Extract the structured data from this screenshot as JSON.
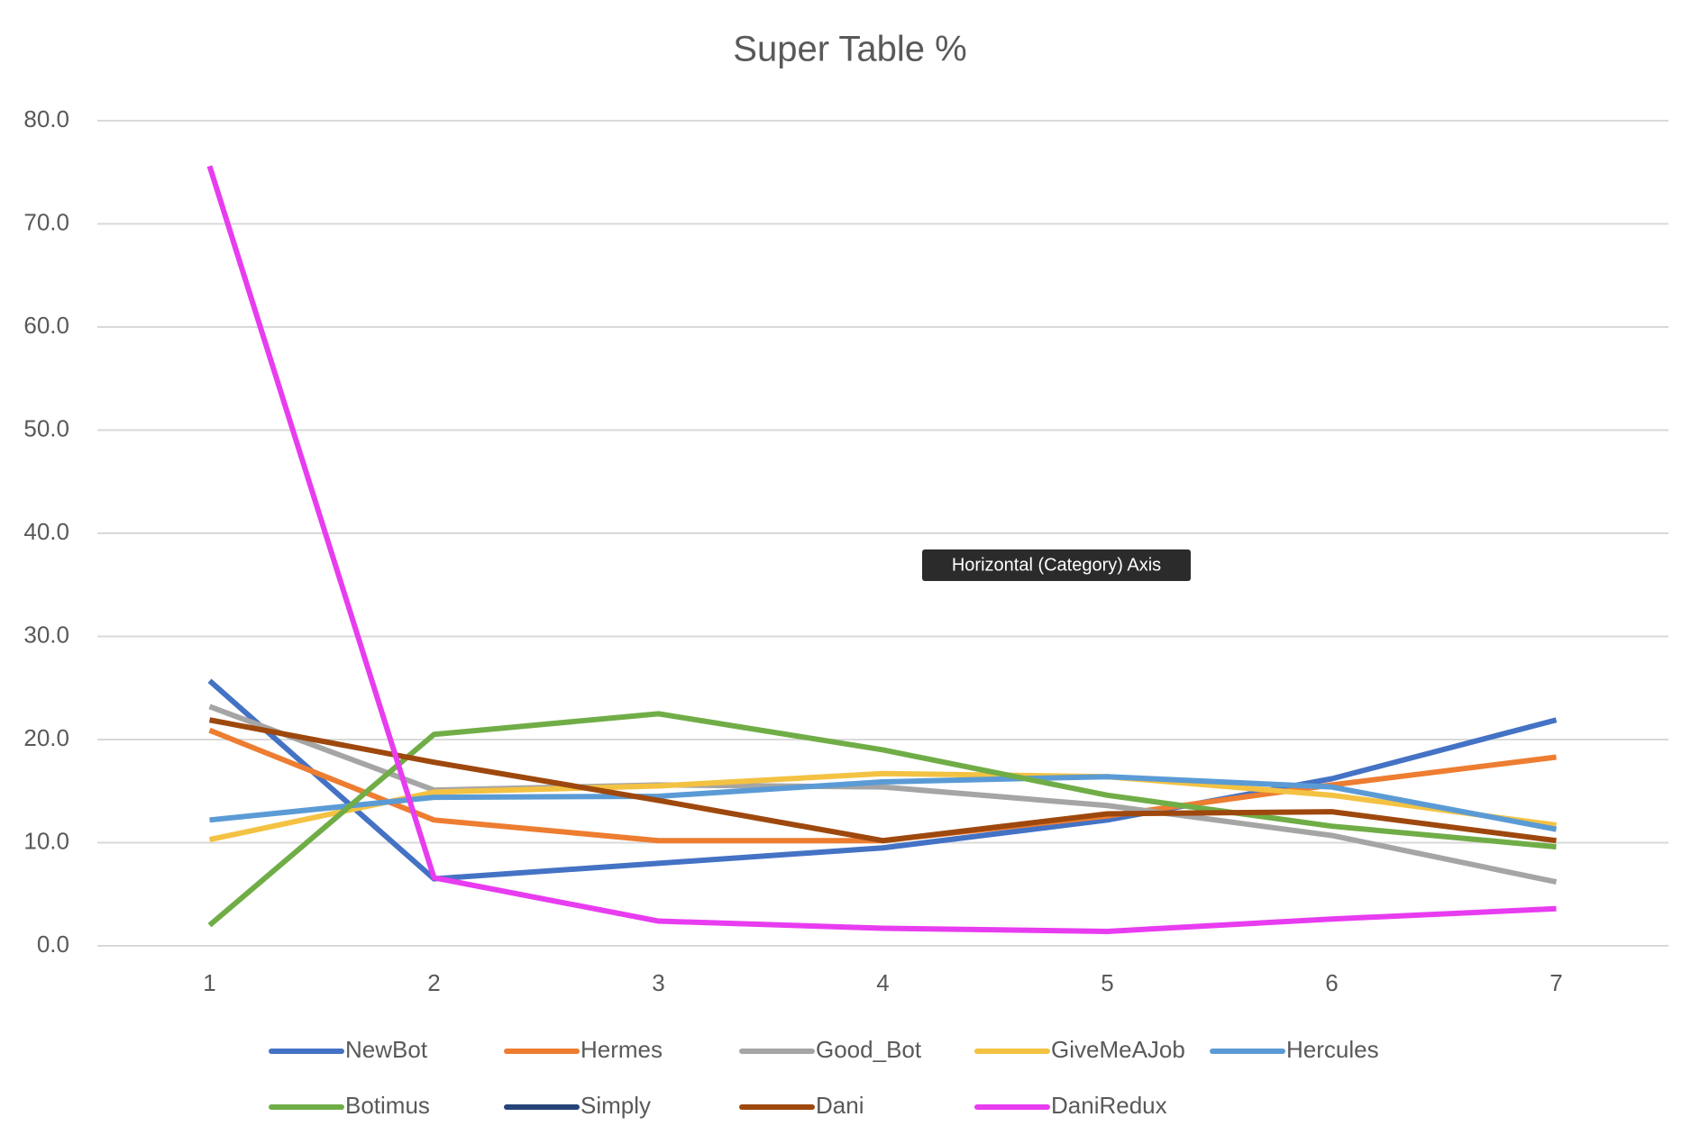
{
  "chart_data": {
    "type": "line",
    "title": "Super Table %",
    "categories": [
      "1",
      "2",
      "3",
      "4",
      "5",
      "6",
      "7"
    ],
    "ylim": [
      0,
      80
    ],
    "yticks": [
      {
        "value": 0,
        "label": "0.0"
      },
      {
        "value": 10,
        "label": "10.0"
      },
      {
        "value": 20,
        "label": "20.0"
      },
      {
        "value": 30,
        "label": "30.0"
      },
      {
        "value": 40,
        "label": "40.0"
      },
      {
        "value": 50,
        "label": "50.0"
      },
      {
        "value": 60,
        "label": "60.0"
      },
      {
        "value": 70,
        "label": "70.0"
      },
      {
        "value": 80,
        "label": "80.0"
      }
    ],
    "grid": true,
    "legend": "bottom",
    "tooltip": "Horizontal (Category) Axis",
    "series": [
      {
        "name": "NewBot",
        "color": "#4472c4",
        "values": [
          25.7,
          6.5,
          8.0,
          9.5,
          12.2,
          16.2,
          21.9
        ]
      },
      {
        "name": "Hermes",
        "color": "#ed7d31",
        "values": [
          20.9,
          12.2,
          10.2,
          10.2,
          12.6,
          15.6,
          18.3
        ]
      },
      {
        "name": "Good_Bot",
        "color": "#a5a5a5",
        "values": [
          23.2,
          15.1,
          15.6,
          15.4,
          13.6,
          10.7,
          6.2
        ]
      },
      {
        "name": "GiveMeAJob",
        "color": "#f4c242",
        "values": [
          10.3,
          14.9,
          15.5,
          16.7,
          16.4,
          14.6,
          11.7
        ]
      },
      {
        "name": "Hercules",
        "color": "#5b9bd5",
        "values": [
          12.2,
          14.4,
          14.5,
          15.9,
          16.4,
          15.4,
          11.3
        ]
      },
      {
        "name": "Botimus",
        "color": "#70ad47",
        "values": [
          2.0,
          20.5,
          22.5,
          19.0,
          14.6,
          11.6,
          9.6
        ]
      },
      {
        "name": "Simply",
        "color": "#264478",
        "values": [
          null,
          null,
          null,
          null,
          null,
          null,
          null
        ]
      },
      {
        "name": "Dani",
        "color": "#9e480e",
        "values": [
          21.9,
          17.8,
          14.1,
          10.2,
          12.8,
          13.0,
          10.2
        ]
      },
      {
        "name": "DaniRedux",
        "color": "#e83cf0",
        "values": [
          75.6,
          6.6,
          2.4,
          1.7,
          1.4,
          2.6,
          3.6
        ]
      }
    ]
  }
}
